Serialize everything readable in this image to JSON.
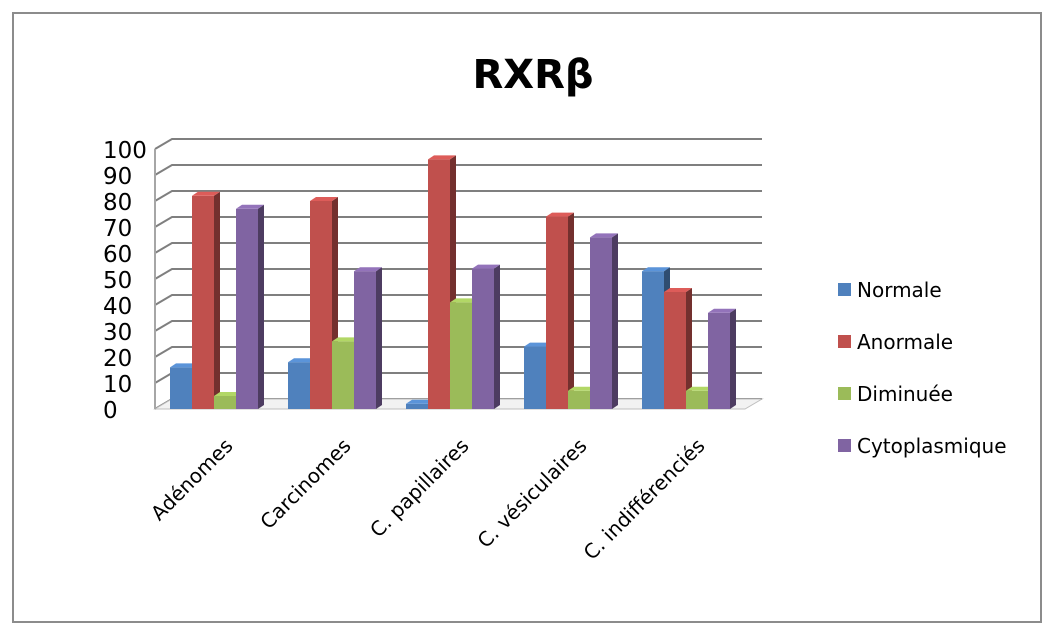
{
  "chart_data": {
    "type": "bar",
    "title": "RXRβ",
    "categories": [
      "Adénomes",
      "Carcinomes",
      "C. papillaires",
      "C. vésiculaires",
      "C. indifférenciés"
    ],
    "series": [
      {
        "name": "Normale",
        "color": "#4f81bd",
        "values": [
          16,
          18,
          2,
          24,
          53
        ]
      },
      {
        "name": "Anormale",
        "color": "#c0504d",
        "values": [
          82,
          80,
          96,
          74,
          45
        ]
      },
      {
        "name": "Diminuée",
        "color": "#9bbb59",
        "values": [
          5,
          26,
          41,
          7,
          7
        ]
      },
      {
        "name": "Cytoplasmique",
        "color": "#8064a2",
        "values": [
          77,
          53,
          54,
          66,
          37
        ]
      }
    ],
    "ylim": [
      0,
      100
    ],
    "yticks": [
      "0",
      "10",
      "20",
      "30",
      "40",
      "50",
      "60",
      "70",
      "80",
      "90",
      "100"
    ],
    "grid": true,
    "legend": "right"
  }
}
